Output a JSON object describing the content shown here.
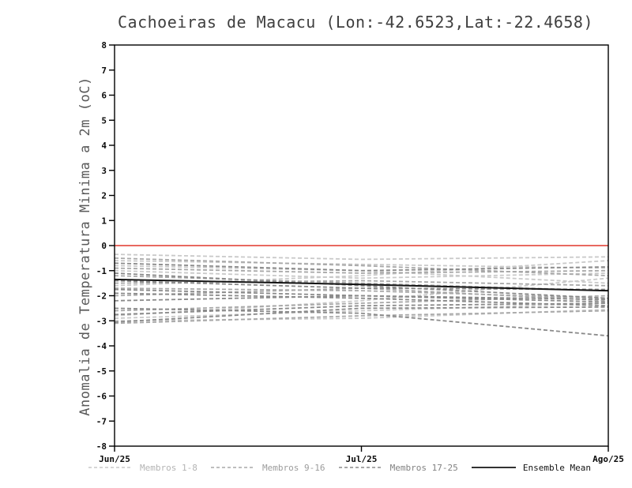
{
  "page": {
    "background": "#ffffff"
  },
  "chart_data": {
    "type": "line",
    "title": "Cachoeiras de Macacu (Lon:-42.6523,Lat:-22.4658)",
    "ylabel": "Anomalia de Temperatura Minima a 2m (oC)",
    "xlabel": "",
    "ylim": [
      -8,
      8
    ],
    "y_ticks": [
      -8,
      -7,
      -6,
      -5,
      -4,
      -3,
      -2,
      -1,
      0,
      1,
      2,
      3,
      4,
      5,
      6,
      7,
      8
    ],
    "x": [
      0,
      1,
      2
    ],
    "x_ticklabels": [
      "Jun/25",
      "Jul/25",
      "Ago/25"
    ],
    "grid": false,
    "legend_position": "bottom",
    "axis_color": "#000000",
    "zero_line": {
      "value": 0,
      "color": "#e0362b"
    },
    "ensemble_mean": {
      "name": "Ensemble Mean",
      "color": "#141414",
      "style": "solid",
      "values": [
        -1.35,
        -1.55,
        -1.8
      ]
    },
    "member_groups": [
      {
        "name": "Membros 1-8",
        "color": "#c9c9c9",
        "style": "dashed",
        "members": [
          [
            -0.35,
            -0.55,
            -0.45
          ],
          [
            -0.6,
            -0.75,
            -0.9
          ],
          [
            -0.8,
            -1.0,
            -1.5
          ],
          [
            -1.0,
            -1.3,
            -1.1
          ],
          [
            -1.6,
            -1.2,
            -0.6
          ],
          [
            -2.8,
            -2.2,
            -1.3
          ],
          [
            -2.9,
            -2.6,
            -2.3
          ],
          [
            -3.0,
            -2.9,
            -2.55
          ]
        ]
      },
      {
        "name": "Membros 9-16",
        "color": "#a8a8a8",
        "style": "dashed",
        "members": [
          [
            -0.5,
            -0.8,
            -1.2
          ],
          [
            -0.9,
            -1.1,
            -1.0
          ],
          [
            -1.2,
            -1.5,
            -1.8
          ],
          [
            -1.5,
            -1.4,
            -1.6
          ],
          [
            -1.7,
            -1.8,
            -2.1
          ],
          [
            -2.0,
            -1.7,
            -2.2
          ],
          [
            -2.6,
            -2.3,
            -2.0
          ],
          [
            -3.1,
            -2.8,
            -2.6
          ]
        ]
      },
      {
        "name": "Membros 17-25",
        "color": "#8a8a8a",
        "style": "dashed",
        "members": [
          [
            -0.7,
            -1.0,
            -0.85
          ],
          [
            -1.1,
            -1.6,
            -2.1
          ],
          [
            -1.4,
            -1.7,
            -1.75
          ],
          [
            -1.75,
            -2.0,
            -2.25
          ],
          [
            -1.9,
            -2.1,
            -2.4
          ],
          [
            -2.2,
            -2.0,
            -2.15
          ],
          [
            -2.5,
            -2.7,
            -3.6
          ],
          [
            -2.75,
            -2.4,
            -2.3
          ],
          [
            -3.05,
            -2.5,
            -2.45
          ]
        ]
      }
    ],
    "legend": [
      {
        "label": "Membros 1-8",
        "color": "#c9c9c9",
        "style": "dashed",
        "label_color": "#b4b4b4"
      },
      {
        "label": "Membros 9-16",
        "color": "#a8a8a8",
        "style": "dashed",
        "label_color": "#9c9c9c"
      },
      {
        "label": "Membros 17-25",
        "color": "#8a8a8a",
        "style": "dashed",
        "label_color": "#828282"
      },
      {
        "label": "Ensemble Mean",
        "color": "#141414",
        "style": "solid",
        "label_color": "#141414"
      }
    ]
  }
}
